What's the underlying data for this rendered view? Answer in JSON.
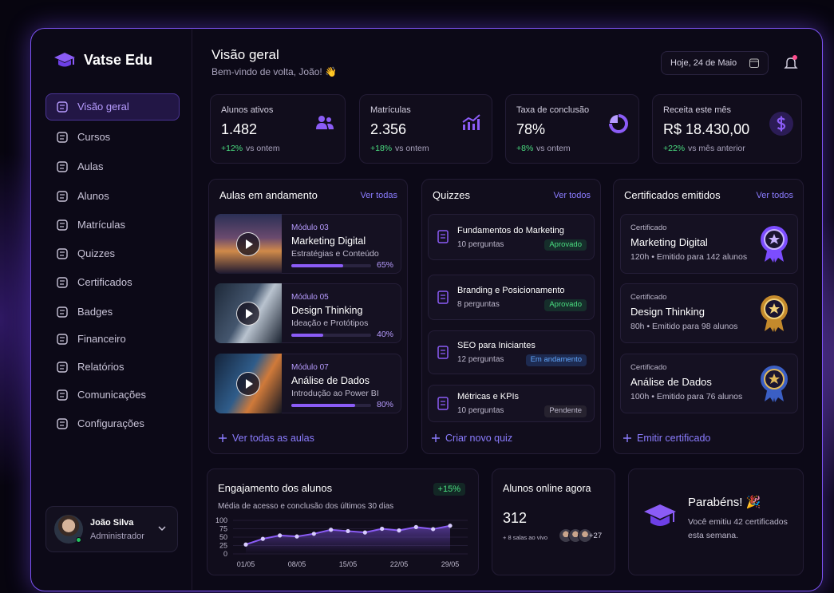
{
  "brand": {
    "name": "Vatse Edu"
  },
  "nav": [
    "Visão geral",
    "Cursos",
    "Aulas",
    "Alunos",
    "Matrículas",
    "Quizzes",
    "Certificados",
    "Badges",
    "Financeiro",
    "Relatórios",
    "Comunicações",
    "Configurações"
  ],
  "user": {
    "name": "João Silva",
    "role": "Administrador"
  },
  "header": {
    "title": "Visão geral",
    "subtitle": "Bem-vindo de volta, João! 👋",
    "date": "Hoje, 24 de Maio"
  },
  "stats": [
    {
      "label": "Alunos ativos",
      "value": "1.482",
      "change": "+12%",
      "note": "vs ontem"
    },
    {
      "label": "Matrículas",
      "value": "2.356",
      "change": "+18%",
      "note": "vs ontem"
    },
    {
      "label": "Taxa de conclusão",
      "value": "78%",
      "change": "+8%",
      "note": "vs ontem"
    },
    {
      "label": "Receita este mês",
      "value": "R$ 18.430,00",
      "change": "+22%",
      "note": "vs mês anterior"
    }
  ],
  "lessons": {
    "title": "Aulas em andamento",
    "link": "Ver todas",
    "footer": "Ver todas as aulas",
    "items": [
      {
        "module": "Módulo 03",
        "title": "Marketing Digital",
        "subtitle": "Estratégias e Conteúdo",
        "progress": 65,
        "progress_label": "65%"
      },
      {
        "module": "Módulo 05",
        "title": "Design Thinking",
        "subtitle": "Ideação e Protótipos",
        "progress": 40,
        "progress_label": "40%"
      },
      {
        "module": "Módulo 07",
        "title": "Análise de Dados",
        "subtitle": "Introdução ao Power BI",
        "progress": 80,
        "progress_label": "80%"
      }
    ]
  },
  "quizzes": {
    "title": "Quizzes",
    "link": "Ver todos",
    "footer": "Criar novo quiz",
    "items": [
      {
        "title": "Fundamentos do Marketing",
        "count": "10 perguntas",
        "status": "Aprovado"
      },
      {
        "title": "Branding e Posicionamento",
        "count": "8 perguntas",
        "status": "Aprovado"
      },
      {
        "title": "SEO para Iniciantes",
        "count": "12 perguntas",
        "status": "Em andamento"
      },
      {
        "title": "Métricas e KPIs",
        "count": "10 perguntas",
        "status": "Pendente"
      }
    ]
  },
  "certificates": {
    "title": "Certificados emitidos",
    "link": "Ver todos",
    "footer": "Emitir certificado",
    "items": [
      {
        "kicker": "Certificado",
        "title": "Marketing Digital",
        "details": "120h • Emitido para 142 alunos"
      },
      {
        "kicker": "Certificado",
        "title": "Design Thinking",
        "details": "80h • Emitido para 98 alunos"
      },
      {
        "kicker": "Certificado",
        "title": "Análise de Dados",
        "details": "100h • Emitido para 76 alunos"
      }
    ]
  },
  "chart_data": {
    "type": "line",
    "title": "Engajamento dos alunos",
    "subtitle": "Média de acesso e conclusão dos últimos 30 dias",
    "annotation": "+15%",
    "categories": [
      "01/05",
      null,
      null,
      "08/05",
      null,
      null,
      "15/05",
      null,
      null,
      "22/05",
      null,
      null,
      "29/05"
    ],
    "values": [
      28,
      45,
      55,
      52,
      60,
      72,
      68,
      64,
      75,
      70,
      80,
      74,
      84
    ],
    "color": "#8b5cf6",
    "ylim": [
      0,
      100
    ],
    "yticks": [
      0,
      25,
      50,
      75,
      100
    ],
    "grid": true
  },
  "online": {
    "title": "Alunos online agora",
    "value": "312",
    "note": "+ 8 salas ao vivo",
    "more": "+27"
  },
  "congrats": {
    "title": "Parabéns! 🎉",
    "text": "Você emitiu 42 certificados esta semana."
  }
}
